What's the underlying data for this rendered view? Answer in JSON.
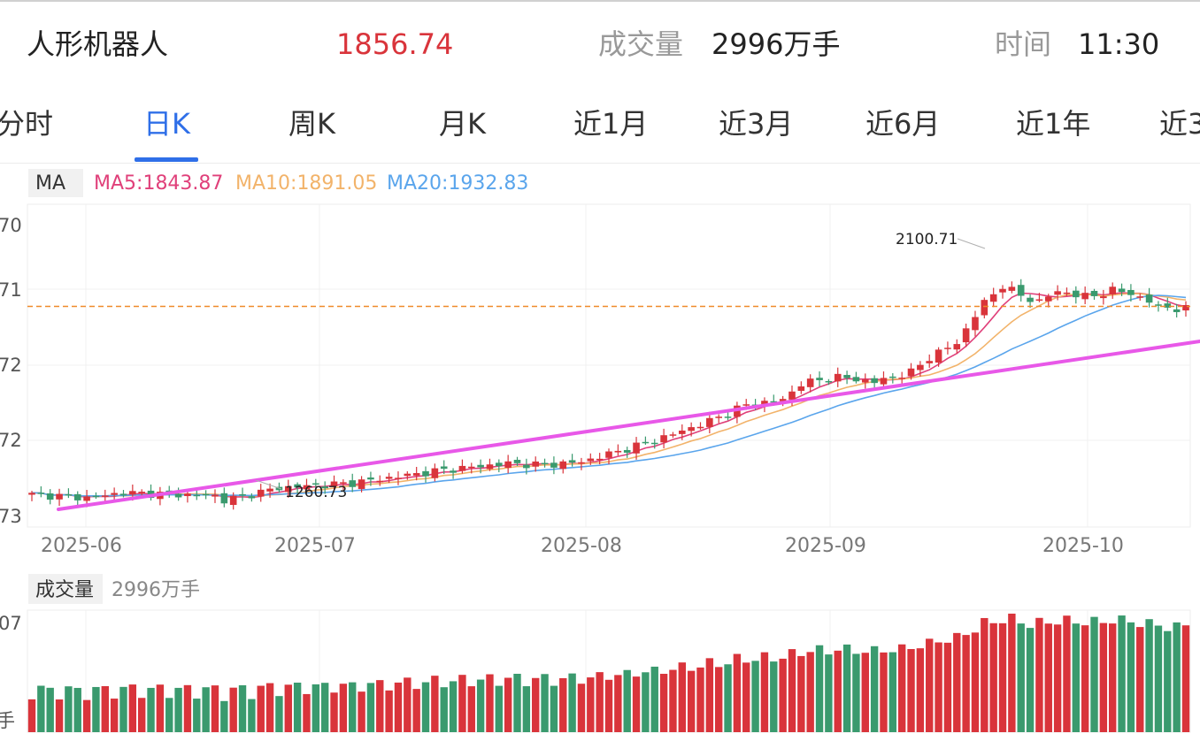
{
  "header": {
    "name": "人形机器人",
    "price": "1856.74",
    "volume_label": "成交量",
    "volume_value": "2996万手",
    "time_label": "时间",
    "time_value": "11:30"
  },
  "tabs": [
    {
      "label": "分时",
      "active": false
    },
    {
      "label": "日K",
      "active": true
    },
    {
      "label": "周K",
      "active": false
    },
    {
      "label": "月K",
      "active": false
    },
    {
      "label": "近1月",
      "active": false
    },
    {
      "label": "近3月",
      "active": false
    },
    {
      "label": "近6月",
      "active": false
    },
    {
      "label": "近1年",
      "active": false
    },
    {
      "label": "近3",
      "active": false
    }
  ],
  "ma": {
    "label": "MA",
    "ma5": "MA5:1843.87",
    "ma10": "MA10:1891.05",
    "ma20": "MA20:1932.83"
  },
  "colors": {
    "up": "#d9343b",
    "down": "#3a9a6e",
    "ma5": "#e0407a",
    "ma10": "#f2b36a",
    "ma20": "#5aa5ec",
    "trendline": "#e858e8",
    "price_line": "#f08a2a",
    "active_tab": "#2f6fe8"
  },
  "chart_data": {
    "type": "candlestick",
    "y_tick_labels": [
      "70",
      "71",
      "72",
      "72",
      "73"
    ],
    "x_tick_labels": [
      "2025-06",
      "2025-07",
      "2025-08",
      "2025-09",
      "2025-10"
    ],
    "annotations": {
      "high": "2100.71",
      "low": "1260.73"
    },
    "current_price": 1856.74,
    "volume_label": "成交量",
    "volume_value": "2996万手",
    "volume_tick_label": "07",
    "volume_unit_label": "手"
  }
}
